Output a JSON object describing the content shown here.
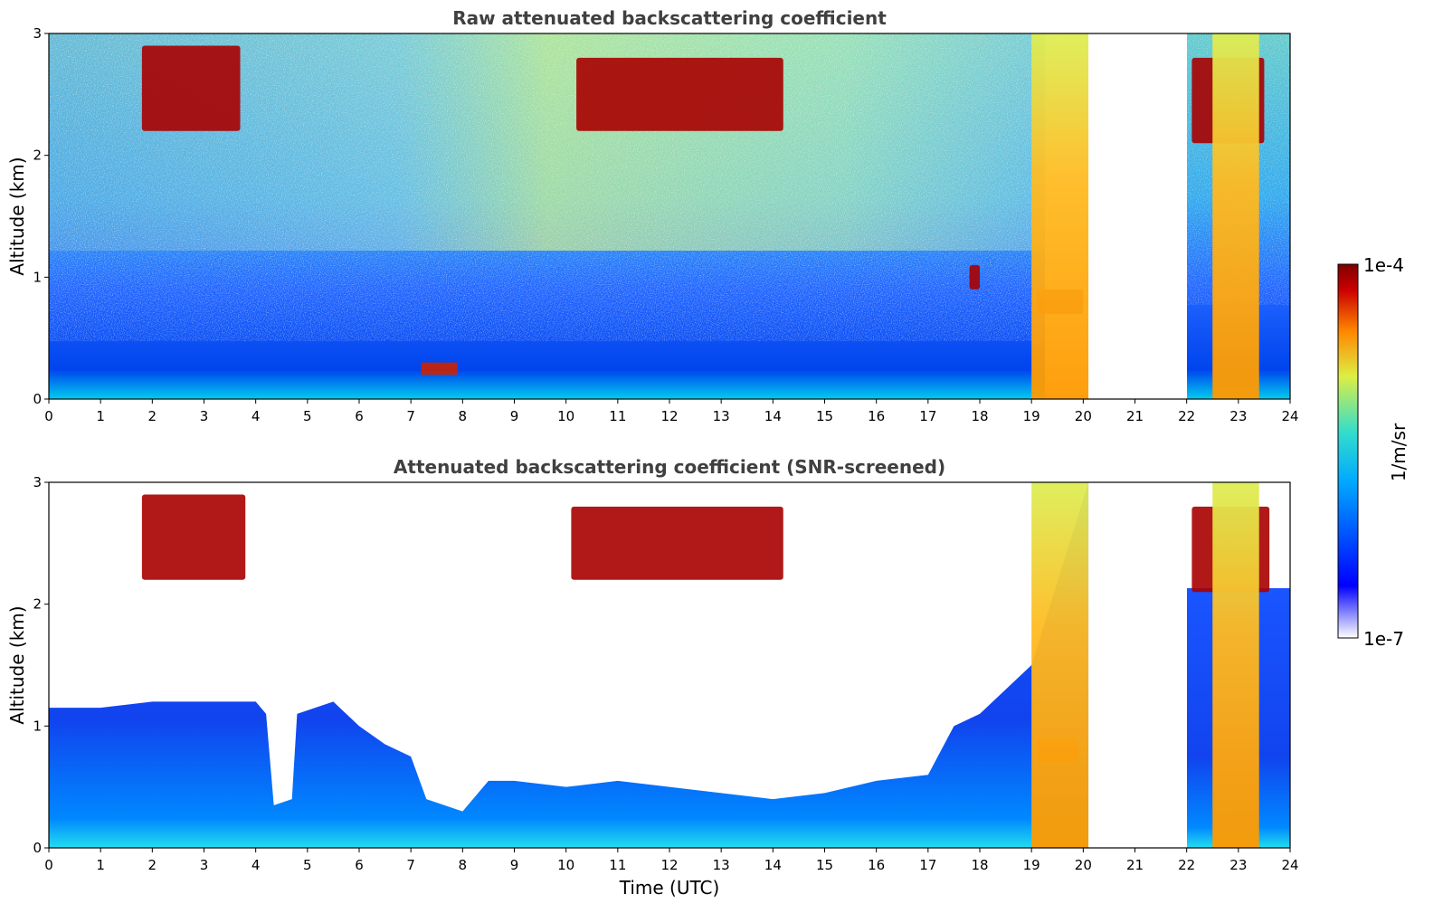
{
  "chart_data": [
    {
      "type": "heatmap",
      "title": "Raw attenuated backscattering coefficient",
      "xlabel": "",
      "ylabel": "Altitude (km)",
      "xlim": [
        0,
        24
      ],
      "ylim": [
        0,
        3
      ],
      "x_ticks": [
        "0",
        "1",
        "2",
        "3",
        "4",
        "5",
        "6",
        "7",
        "8",
        "9",
        "10",
        "11",
        "12",
        "13",
        "14",
        "15",
        "16",
        "17",
        "18",
        "19",
        "20",
        "21",
        "22",
        "23",
        "24"
      ],
      "y_ticks": [
        "0",
        "1",
        "2",
        "3"
      ],
      "data_gap_hours": [
        [
          20.2,
          22.0
        ]
      ],
      "features": [
        {
          "name": "boundary layer aerosol",
          "x": [
            0,
            19
          ],
          "y": [
            0,
            0.5
          ]
        },
        {
          "name": "surface aerosol layer",
          "x": [
            7.2,
            7.9
          ],
          "y": [
            0.2,
            0.3
          ]
        },
        {
          "name": "cloud",
          "x": [
            1.8,
            3.7
          ],
          "y": [
            2.2,
            2.9
          ]
        },
        {
          "name": "cloud",
          "x": [
            10.2,
            14.2
          ],
          "y": [
            2.2,
            2.8
          ]
        },
        {
          "name": "cloud",
          "x": [
            17.8,
            18.0
          ],
          "y": [
            0.9,
            1.1
          ]
        },
        {
          "name": "cloud",
          "x": [
            19.1,
            20.0
          ],
          "y": [
            0.7,
            0.9
          ]
        },
        {
          "name": "cloud",
          "x": [
            22.1,
            23.5
          ],
          "y": [
            2.1,
            2.8
          ]
        },
        {
          "name": "precipitation",
          "x": [
            19.0,
            20.1
          ],
          "y": [
            0,
            3
          ]
        },
        {
          "name": "precipitation",
          "x": [
            22.5,
            23.4
          ],
          "y": [
            0,
            3
          ]
        }
      ]
    },
    {
      "type": "heatmap",
      "title": "Attenuated backscattering coefficient (SNR-screened)",
      "xlabel": "Time (UTC)",
      "ylabel": "Altitude (km)",
      "xlim": [
        0,
        24
      ],
      "ylim": [
        0,
        3
      ],
      "x_ticks": [
        "0",
        "1",
        "2",
        "3",
        "4",
        "5",
        "6",
        "7",
        "8",
        "9",
        "10",
        "11",
        "12",
        "13",
        "14",
        "15",
        "16",
        "17",
        "18",
        "19",
        "20",
        "21",
        "22",
        "23",
        "24"
      ],
      "y_ticks": [
        "0",
        "1",
        "2",
        "3"
      ],
      "data_gap_hours": [
        [
          20.2,
          22.0
        ]
      ],
      "boundary_layer_top_km": [
        [
          0,
          1.15
        ],
        [
          1,
          1.15
        ],
        [
          2,
          1.2
        ],
        [
          3,
          1.2
        ],
        [
          4,
          1.2
        ],
        [
          4.2,
          1.1
        ],
        [
          4.35,
          0.35
        ],
        [
          4.7,
          0.4
        ],
        [
          4.8,
          1.1
        ],
        [
          5.5,
          1.2
        ],
        [
          6,
          1.0
        ],
        [
          6.5,
          0.85
        ],
        [
          7,
          0.75
        ],
        [
          7.3,
          0.4
        ],
        [
          8,
          0.3
        ],
        [
          8.5,
          0.55
        ],
        [
          9,
          0.55
        ],
        [
          10,
          0.5
        ],
        [
          11,
          0.55
        ],
        [
          12,
          0.5
        ],
        [
          13,
          0.45
        ],
        [
          14,
          0.4
        ],
        [
          15,
          0.45
        ],
        [
          16,
          0.55
        ],
        [
          17,
          0.6
        ],
        [
          17.5,
          1.0
        ],
        [
          18,
          1.1
        ],
        [
          19,
          1.5
        ],
        [
          20.1,
          3.0
        ]
      ],
      "features": [
        {
          "name": "cloud",
          "x": [
            1.8,
            3.8
          ],
          "y": [
            2.2,
            2.9
          ]
        },
        {
          "name": "cloud",
          "x": [
            10.1,
            14.2
          ],
          "y": [
            2.2,
            2.8
          ]
        },
        {
          "name": "cloud",
          "x": [
            19.1,
            19.9
          ],
          "y": [
            0.7,
            0.9
          ]
        },
        {
          "name": "cloud",
          "x": [
            22.1,
            23.6
          ],
          "y": [
            2.1,
            2.8
          ]
        },
        {
          "name": "precipitation",
          "x": [
            19.0,
            20.1
          ],
          "y": [
            0,
            3
          ]
        },
        {
          "name": "precipitation",
          "x": [
            22.5,
            23.4
          ],
          "y": [
            0,
            3
          ]
        }
      ]
    }
  ],
  "colorbar": {
    "label": "1/m/sr",
    "max_label": "1e-4",
    "min_label": "1e-7",
    "scale": "log",
    "colormap": [
      "#ffffff",
      "#0000ff",
      "#00aaff",
      "#33ddcc",
      "#ddee44",
      "#ff8800",
      "#cc0000",
      "#7f0000"
    ]
  }
}
